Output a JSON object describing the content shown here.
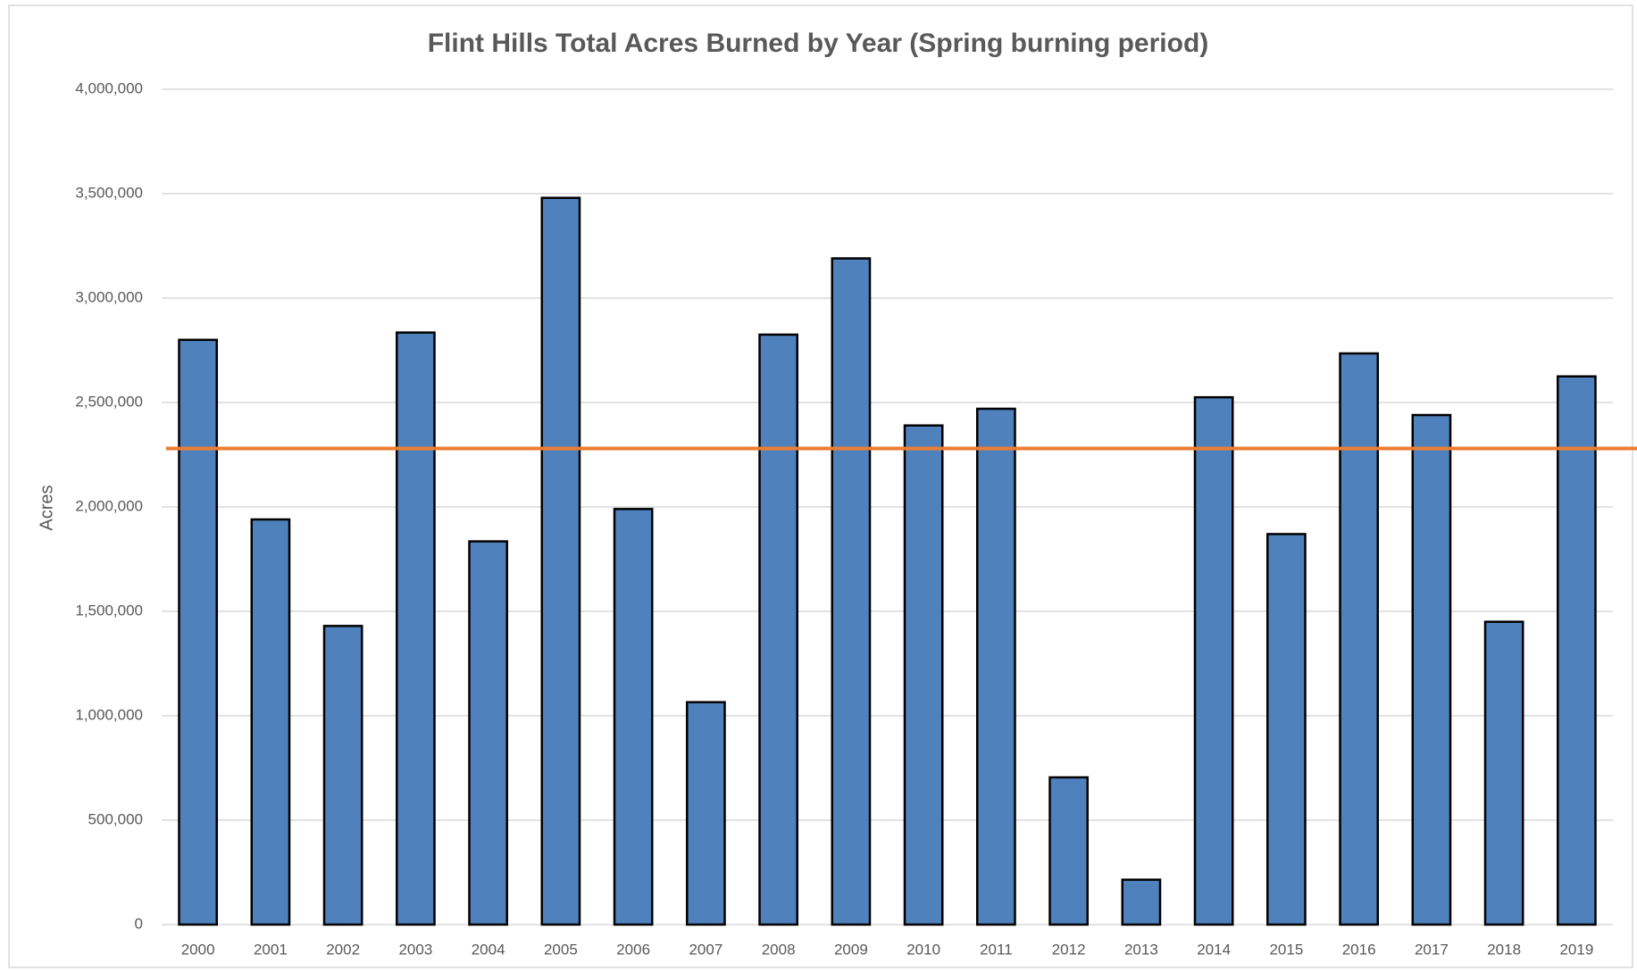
{
  "chart_data": {
    "type": "bar",
    "title": "Flint Hills Total Acres Burned by Year (Spring burning period)",
    "y_label": "Acres",
    "categories": [
      "2000",
      "2001",
      "2002",
      "2003",
      "2004",
      "2005",
      "2006",
      "2007",
      "2008",
      "2009",
      "2010",
      "2011",
      "2012",
      "2013",
      "2014",
      "2015",
      "2016",
      "2017",
      "2018",
      "2019"
    ],
    "values": [
      2800000,
      1940000,
      1430000,
      2835000,
      1835000,
      3480000,
      1990000,
      1065000,
      2825000,
      3190000,
      2390000,
      2470000,
      705000,
      215000,
      2525000,
      1870000,
      2735000,
      2440000,
      1450000,
      2625000
    ],
    "color": "#4f81bd",
    "reference_line": {
      "value": 2280000,
      "color": "#ed7d31"
    },
    "ylim": [
      0,
      4000000
    ],
    "yticks": [
      0,
      {
        "value": 500000,
        "label": "500,000"
      },
      {
        "value": 1000000,
        "label": "1,000,000"
      },
      {
        "value": 1500000,
        "label": "1,500,000"
      },
      {
        "value": 2000000,
        "label": "2,000,000"
      },
      {
        "value": 2500000,
        "label": "2,500,000"
      },
      {
        "value": 3000000,
        "label": "3,000,000"
      },
      {
        "value": 3500000,
        "label": "3,500,000"
      },
      {
        "value": 4000000,
        "label": "4,000,000"
      }
    ],
    "grid": true
  }
}
